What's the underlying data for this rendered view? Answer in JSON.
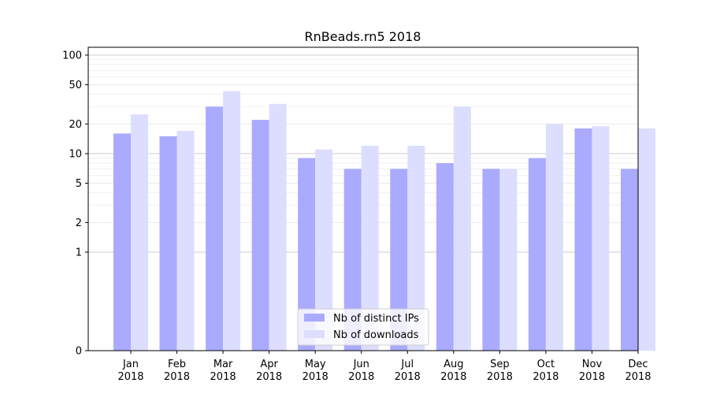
{
  "chart_data": {
    "type": "bar",
    "title": "RnBeads.rn5 2018",
    "xlabel": "",
    "ylabel": "",
    "y_scale": "symlog",
    "y_ticks": [
      0,
      1,
      2,
      5,
      10,
      20,
      50,
      100
    ],
    "ylim": [
      0,
      120
    ],
    "grid": "horizontal",
    "legend_position": "bottom-center",
    "categories": [
      "Jan\n2018",
      "Feb\n2018",
      "Mar\n2018",
      "Apr\n2018",
      "May\n2018",
      "Jun\n2018",
      "Jul\n2018",
      "Aug\n2018",
      "Sep\n2018",
      "Oct\n2018",
      "Nov\n2018",
      "Dec\n2018"
    ],
    "series": [
      {
        "name": "Nb of distinct IPs",
        "color": "#aaaaff",
        "values": [
          16,
          15,
          30,
          22,
          9,
          7,
          7,
          8,
          7,
          9,
          18,
          7
        ]
      },
      {
        "name": "Nb of downloads",
        "color": "#ddddff",
        "values": [
          25,
          17,
          43,
          32,
          11,
          12,
          12,
          30,
          7,
          20,
          19,
          18
        ]
      }
    ]
  }
}
